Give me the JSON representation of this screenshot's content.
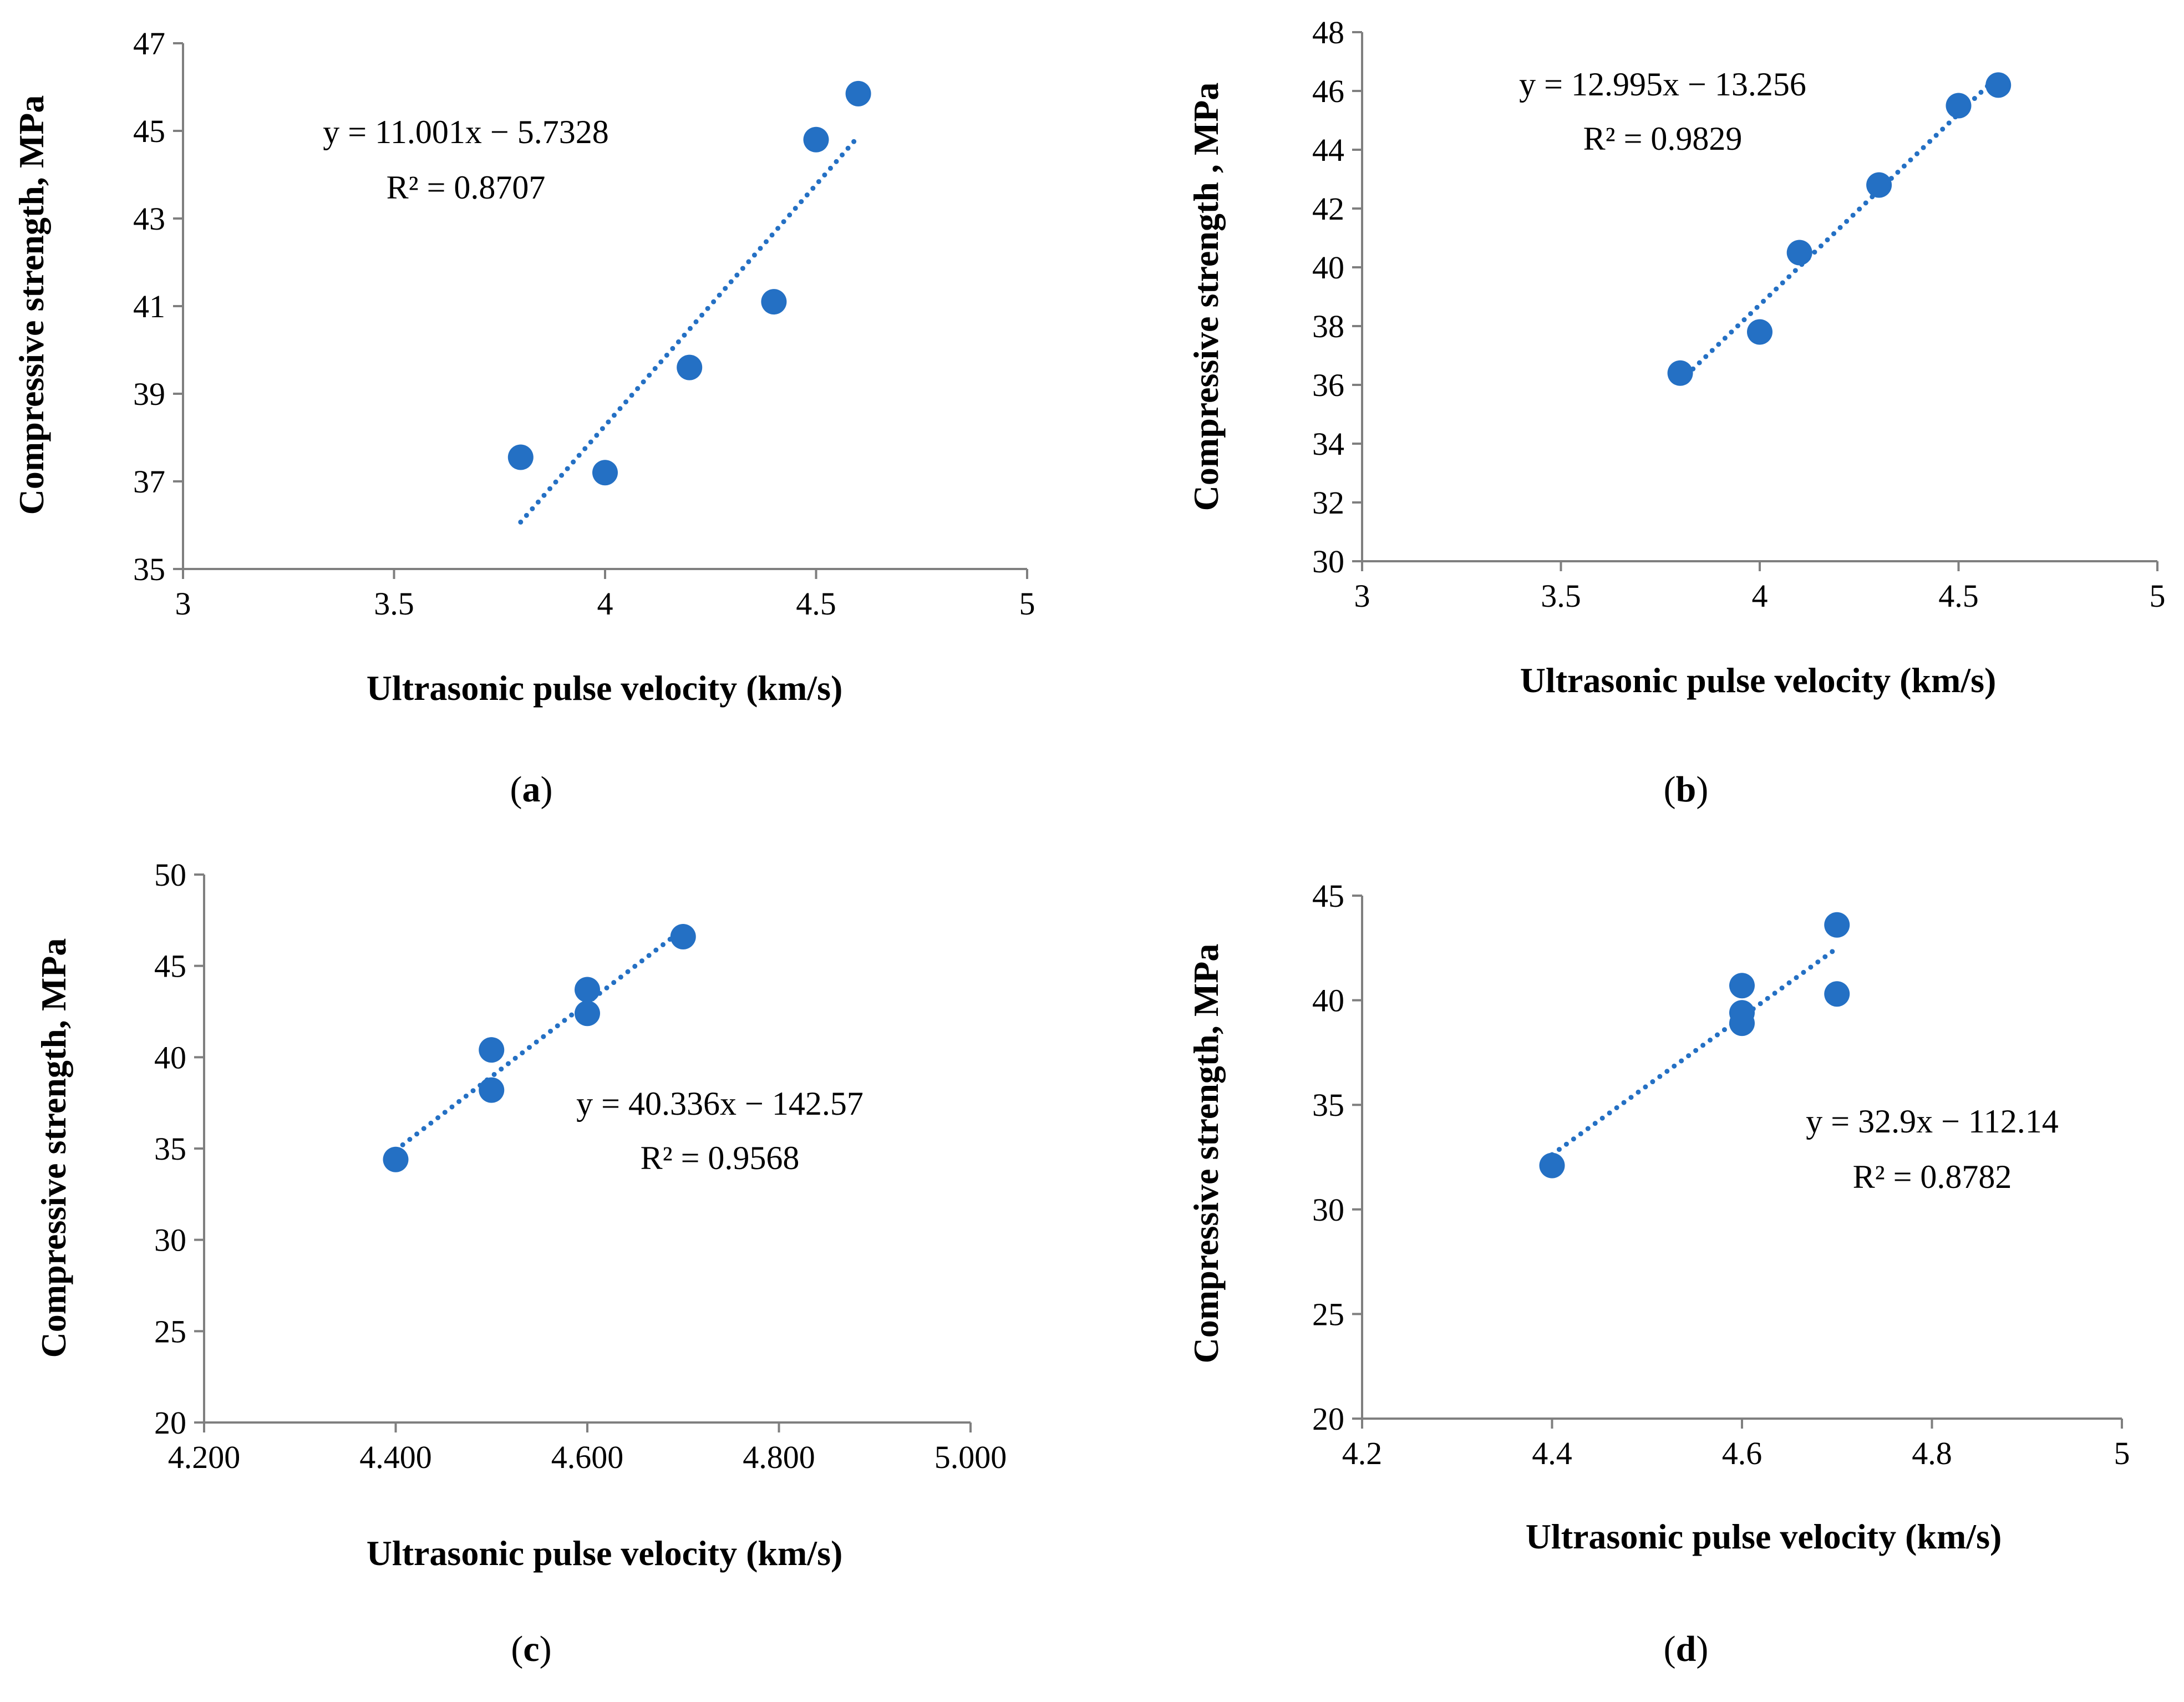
{
  "chart_data": [
    {
      "type": "scatter",
      "panel_label": "a",
      "xlabel": "Ultrasonic pulse velocity (km/s)",
      "ylabel": "Compressive strength, MPa",
      "xlim": [
        3,
        5
      ],
      "ylim": [
        35,
        47
      ],
      "xticks": [
        "3",
        "3.5",
        "4",
        "4.5",
        "5"
      ],
      "yticks": [
        "35",
        "37",
        "39",
        "41",
        "43",
        "45",
        "47"
      ],
      "x": [
        3.8,
        4.0,
        4.2,
        4.4,
        4.5,
        4.6
      ],
      "y": [
        37.55,
        37.2,
        39.6,
        41.1,
        44.8,
        45.85
      ],
      "trendline": {
        "slope": 11.001,
        "intercept": -5.7328,
        "x_range": [
          3.8,
          4.6
        ]
      },
      "equation": "y = 11.001x − 5.7328",
      "r2": "R² = 0.8707",
      "marker_color": "#2470c4"
    },
    {
      "type": "scatter",
      "panel_label": "b",
      "xlabel": "Ultrasonic pulse velocity (km/s)",
      "ylabel": "Compressive strength , MPa",
      "xlim": [
        3,
        5
      ],
      "ylim": [
        30,
        48
      ],
      "xticks": [
        "3",
        "3.5",
        "4",
        "4.5",
        "5"
      ],
      "yticks": [
        "30",
        "32",
        "34",
        "36",
        "38",
        "40",
        "42",
        "44",
        "46",
        "48"
      ],
      "x": [
        3.8,
        4.0,
        4.1,
        4.3,
        4.5,
        4.6
      ],
      "y": [
        36.4,
        37.8,
        40.5,
        42.8,
        45.5,
        46.2
      ],
      "trendline": {
        "slope": 12.995,
        "intercept": -13.256,
        "x_range": [
          3.8,
          4.6
        ]
      },
      "equation": "y = 12.995x − 13.256",
      "r2": "R² = 0.9829",
      "marker_color": "#2470c4"
    },
    {
      "type": "scatter",
      "panel_label": "c",
      "xlabel": "Ultrasonic pulse velocity (km/s)",
      "ylabel": "Compressive strength, MPa",
      "xlim": [
        4.2,
        5.0
      ],
      "ylim": [
        20,
        50
      ],
      "xticks": [
        "4.200",
        "4.400",
        "4.600",
        "4.800",
        "5.000"
      ],
      "yticks": [
        "20",
        "25",
        "30",
        "35",
        "40",
        "45",
        "50"
      ],
      "x": [
        4.4,
        4.5,
        4.5,
        4.6,
        4.6,
        4.7
      ],
      "y": [
        34.4,
        38.2,
        40.4,
        42.4,
        43.7,
        46.6
      ],
      "trendline": {
        "slope": 40.336,
        "intercept": -142.57,
        "x_range": [
          4.4,
          4.7
        ]
      },
      "equation": "y = 40.336x − 142.57",
      "r2": "R² = 0.9568",
      "marker_color": "#2470c4"
    },
    {
      "type": "scatter",
      "panel_label": "d",
      "xlabel": "Ultrasonic pulse velocity (km/s)",
      "ylabel": "Compressive strength, MPa",
      "xlim": [
        4.2,
        5
      ],
      "ylim": [
        20,
        45
      ],
      "xticks": [
        "4.2",
        "4.4",
        "4.6",
        "4.8",
        "5"
      ],
      "yticks": [
        "20",
        "25",
        "30",
        "35",
        "40",
        "45"
      ],
      "x": [
        4.4,
        4.6,
        4.6,
        4.6,
        4.7,
        4.7
      ],
      "y": [
        32.1,
        38.9,
        39.4,
        40.7,
        40.3,
        43.6
      ],
      "trendline": {
        "slope": 32.9,
        "intercept": -112.14,
        "x_range": [
          4.4,
          4.7
        ]
      },
      "equation": "y = 32.9x − 112.14",
      "r2": "R² = 0.8782",
      "marker_color": "#2470c4"
    }
  ]
}
